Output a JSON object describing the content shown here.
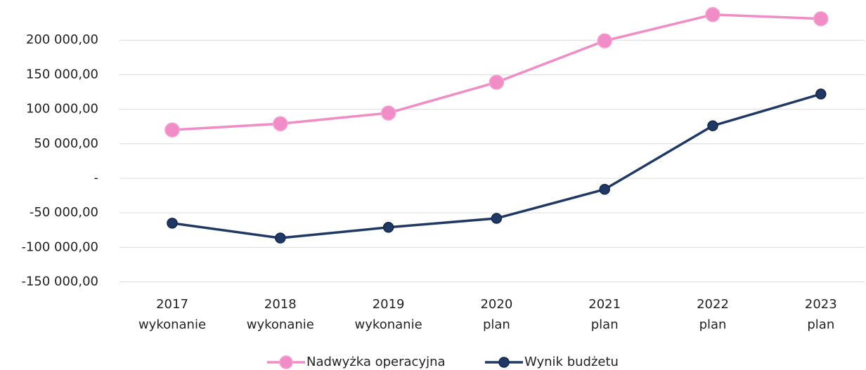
{
  "chart_data": {
    "type": "line",
    "categories": [
      [
        "2017",
        "wykonanie"
      ],
      [
        "2018",
        "wykonanie"
      ],
      [
        "2019",
        "wykonanie"
      ],
      [
        "2020",
        "plan"
      ],
      [
        "2021",
        "plan"
      ],
      [
        "2022",
        "plan"
      ],
      [
        "2023",
        "plan"
      ]
    ],
    "series": [
      {
        "name": "Nadwyżka operacyjna",
        "color": "#f08cc6",
        "values": [
          70000,
          79000,
          94500,
          139000,
          199000,
          237000,
          231000
        ]
      },
      {
        "name": "Wynik budżetu",
        "color": "#1f3864",
        "values": [
          -65000,
          -86500,
          -71000,
          -58000,
          -16000,
          76000,
          122000
        ]
      }
    ],
    "ylim": [
      -150000,
      250000
    ],
    "yticks": [
      {
        "value": -150000,
        "label": "-150 000,00"
      },
      {
        "value": -100000,
        "label": "-100 000,00"
      },
      {
        "value": -50000,
        "label": "-50 000,00"
      },
      {
        "value": 0,
        "label": "-"
      },
      {
        "value": 50000,
        "label": "50 000,00"
      },
      {
        "value": 100000,
        "label": "100 000,00"
      },
      {
        "value": 150000,
        "label": "150 000,00"
      },
      {
        "value": 200000,
        "label": "200 000,00"
      }
    ],
    "grid": true,
    "legend": "bottom"
  }
}
